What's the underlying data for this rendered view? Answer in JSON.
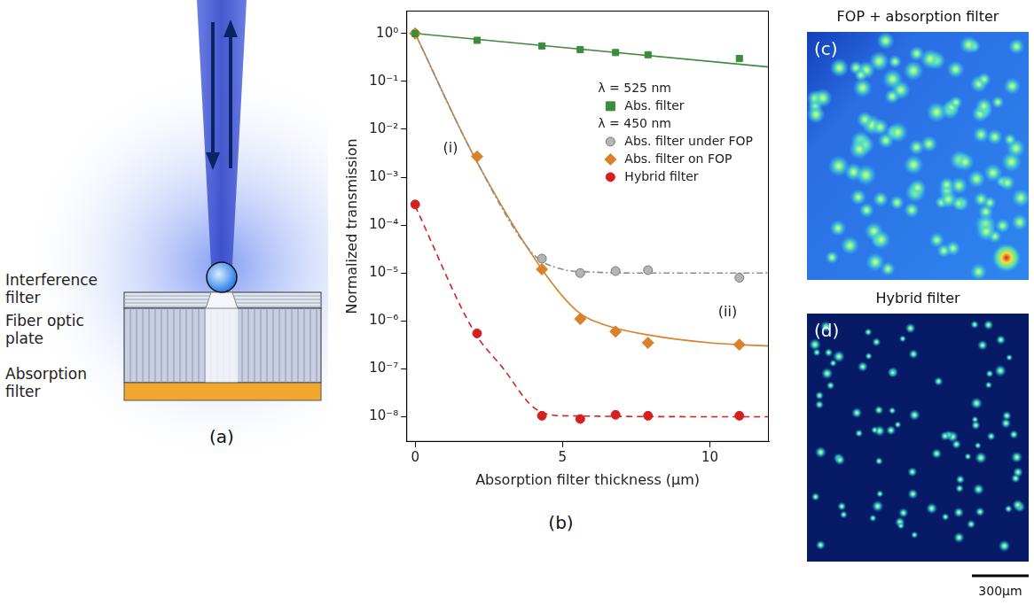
{
  "diagram": {
    "label": "(a)",
    "layers": [
      "Interference filter",
      "Fiber optic plate",
      "Absorption filter"
    ]
  },
  "chart_data": {
    "type": "scatter",
    "panel_label": "(b)",
    "x_label": "Absorption filter thickness (μm)",
    "y_label": "Normalized transmission",
    "log": "y",
    "grid": false,
    "legend": "upper right",
    "xlim": [
      -0.3,
      12
    ],
    "xticks": [
      0,
      5,
      10
    ],
    "ylim": [
      3e-09,
      3
    ],
    "yticks": [
      {
        "value": 1,
        "label": "10⁰"
      },
      {
        "value": 0.1,
        "label": "10⁻¹"
      },
      {
        "value": 0.01,
        "label": "10⁻²"
      },
      {
        "value": 0.001,
        "label": "10⁻³"
      },
      {
        "value": 0.0001,
        "label": "10⁻⁴"
      },
      {
        "value": 1e-05,
        "label": "10⁻⁵"
      },
      {
        "value": 1e-06,
        "label": "10⁻⁶"
      },
      {
        "value": 1e-07,
        "label": "10⁻⁷"
      },
      {
        "value": 1e-08,
        "label": "10⁻⁸"
      }
    ],
    "series": [
      {
        "name": "Abs. filter",
        "group": "λ = 525 nm",
        "color": "#3c8c3c",
        "marker": "square",
        "line_style": "solid",
        "x": [
          0,
          2.1,
          4.3,
          5.6,
          6.8,
          7.9,
          11
        ],
        "values": [
          1,
          0.72,
          0.55,
          0.46,
          0.4,
          0.36,
          0.3
        ],
        "fit": {
          "x": [
            0,
            12
          ],
          "values": [
            1,
            0.2
          ]
        }
      },
      {
        "name": "Abs. filter under FOP",
        "group": "λ = 450 nm",
        "color": "#b4b4b4",
        "marker": "circle",
        "line_style": "dashdot",
        "x": [
          4.3,
          5.6,
          6.8,
          7.9,
          11
        ],
        "values": [
          2e-05,
          1e-05,
          1.1e-05,
          1.15e-05,
          8e-06
        ],
        "fit": {
          "x": [
            0,
            2,
            4,
            5,
            6,
            8,
            12
          ],
          "values": [
            1,
            0.0027,
            2.5e-05,
            1.2e-05,
            1.05e-05,
            1e-05,
            1e-05
          ]
        }
      },
      {
        "name": "Abs. filter on FOP",
        "group": "λ = 450 nm",
        "color": "#d9822b",
        "marker": "diamond",
        "line_style": "solid",
        "x": [
          0,
          2.1,
          4.3,
          5.6,
          6.8,
          7.9,
          11
        ],
        "values": [
          1,
          0.0027,
          1.2e-05,
          1.1e-06,
          6e-07,
          3.5e-07,
          3.2e-07
        ],
        "fit": {
          "x": [
            0,
            2,
            4.3,
            5.5,
            6.5,
            8,
            10,
            12
          ],
          "values": [
            1,
            0.0027,
            1.2e-05,
            1.6e-06,
            8e-07,
            5e-07,
            3.5e-07,
            3e-07
          ]
        }
      },
      {
        "name": "Hybrid filter",
        "group": "λ = 450 nm",
        "color": "#d62020",
        "marker": "circle",
        "line_style": "dashed",
        "x": [
          0,
          2.1,
          4.3,
          5.6,
          6.8,
          7.9,
          11
        ],
        "values": [
          0.00027,
          5.5e-07,
          1.05e-08,
          9e-09,
          1.1e-08,
          1.05e-08,
          1.05e-08
        ],
        "fit": {
          "x": [
            0,
            2,
            3,
            4,
            5,
            12
          ],
          "values": [
            0.00025,
            6e-07,
            1e-07,
            1.6e-08,
            1.05e-08,
            1e-08
          ]
        }
      }
    ],
    "annotations": [
      {
        "text": "(i)",
        "x": 1.2,
        "y": 0.004
      },
      {
        "text": "(ii)",
        "x": 10.6,
        "y": 1.5e-06
      }
    ]
  },
  "images": [
    {
      "label": "(c)",
      "title": "FOP + absorption filter"
    },
    {
      "label": "(d)",
      "title": "Hybrid filter"
    }
  ],
  "scale_bar": "300μm"
}
